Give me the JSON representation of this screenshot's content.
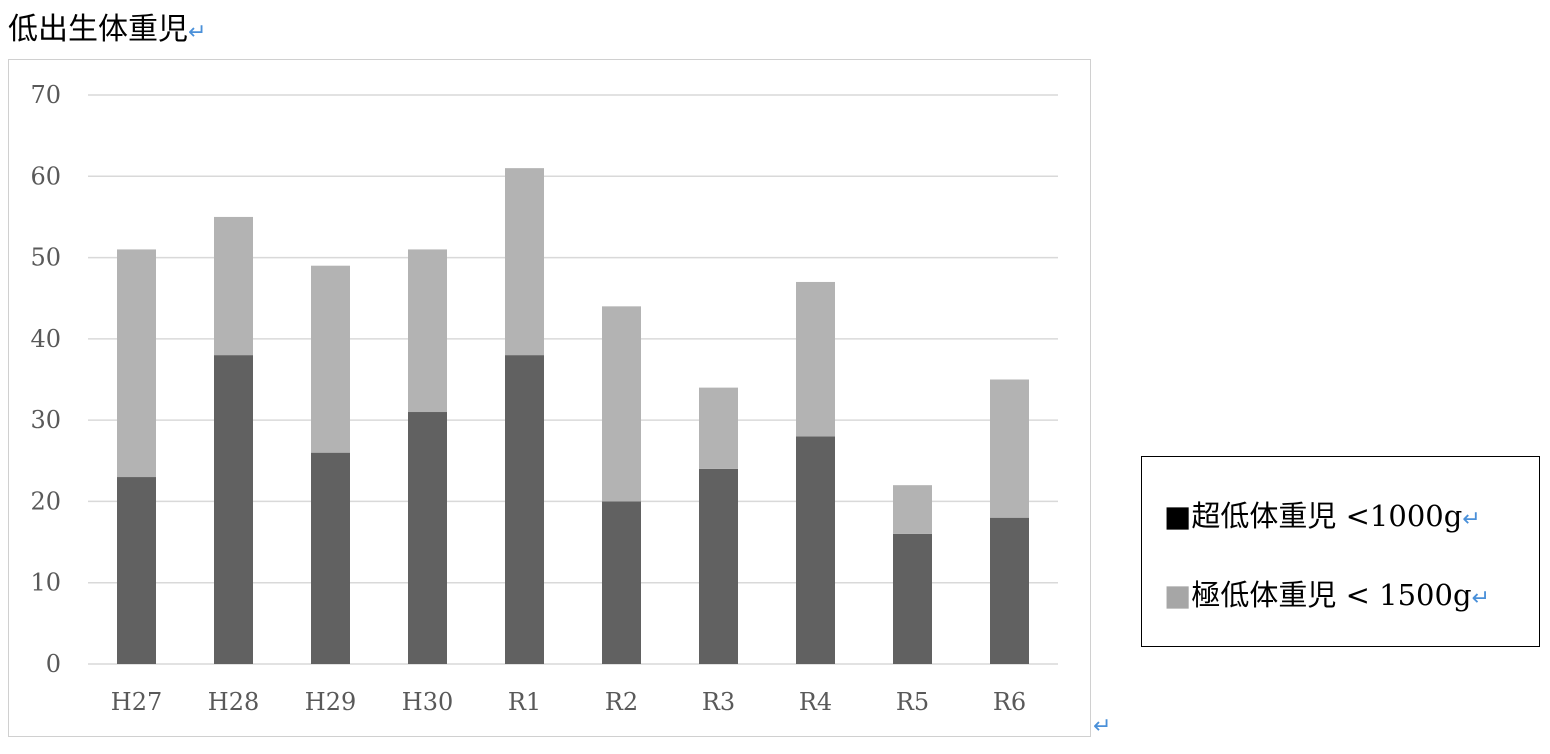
{
  "document": {
    "title": "低出生体重児",
    "paragraph_mark": "↵"
  },
  "colors": {
    "series_dark": "#616161",
    "series_light": "#b3b3b3",
    "gridline": "#d9d9d9",
    "tick_text": "#595959",
    "paragraph_mark": "#4a90d9"
  },
  "legend": {
    "items": [
      {
        "symbol": "■",
        "label": "超低体重児 <1000g",
        "color": "#000000"
      },
      {
        "symbol": "■",
        "label": "極低体重児 < 1500g",
        "color": "#a6a6a6"
      }
    ]
  },
  "chart_data": {
    "type": "bar",
    "stacked": true,
    "categories": [
      "H27",
      "H28",
      "H29",
      "H30",
      "R1",
      "R2",
      "R3",
      "R4",
      "R5",
      "R6"
    ],
    "series": [
      {
        "values": [
          23,
          38,
          26,
          31,
          38,
          20,
          24,
          28,
          16,
          18
        ]
      },
      {
        "values": [
          28,
          17,
          23,
          20,
          23,
          24,
          10,
          19,
          6,
          17
        ]
      }
    ],
    "ylim": [
      0,
      70
    ],
    "yticks": [
      0,
      10,
      20,
      30,
      40,
      50,
      60,
      70
    ],
    "grid": true,
    "legend_position": "right",
    "title": "",
    "xlabel": "",
    "ylabel": ""
  }
}
